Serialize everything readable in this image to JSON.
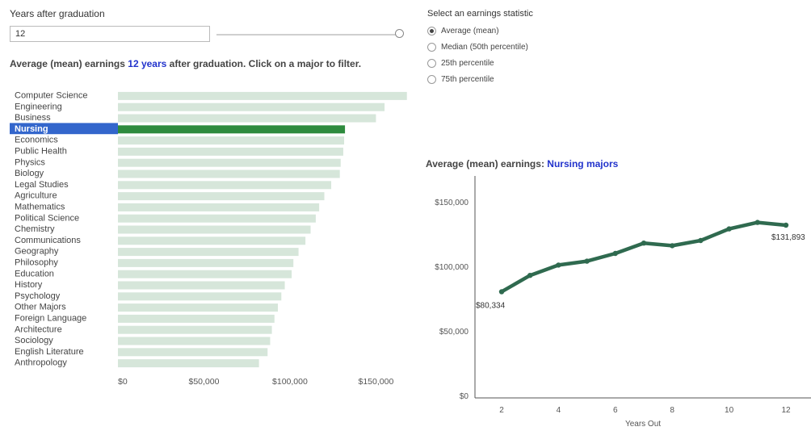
{
  "controls": {
    "years_label": "Years after graduation",
    "years_value": "12",
    "slider_fraction": 1.0,
    "stat_label": "Select an earnings statistic",
    "stat_options": [
      "Average (mean)",
      "Median (50th percentile)",
      "25th percentile",
      "75th percentile"
    ],
    "stat_selected_index": 0
  },
  "bar_title": {
    "prefix": "Average (mean) earnings ",
    "years": "12 years",
    "suffix": " after graduation. Click on a major to filter."
  },
  "line_title": {
    "prefix": "Average (mean) earnings: ",
    "major": "Nursing majors"
  },
  "colors": {
    "bar_default": "#d6e6da",
    "bar_selected": "#2e8b3e",
    "label_selected_bg": "#3366cc",
    "line": "#2f6a4f",
    "highlight_text": "#2233cc"
  },
  "chart_data": [
    {
      "type": "bar",
      "orientation": "horizontal",
      "selected": "Nursing",
      "categories": [
        "Computer Science",
        "Engineering",
        "Business",
        "Nursing",
        "Economics",
        "Public Health",
        "Physics",
        "Biology",
        "Legal Studies",
        "Agriculture",
        "Mathematics",
        "Political Science",
        "Chemistry",
        "Communications",
        "Geography",
        "Philosophy",
        "Education",
        "History",
        "Psychology",
        "Other Majors",
        "Foreign Language",
        "Architecture",
        "Sociology",
        "English Literature",
        "Anthropology"
      ],
      "values": [
        168000,
        155000,
        150000,
        132000,
        131500,
        131000,
        129500,
        129000,
        124000,
        120000,
        117000,
        115000,
        112000,
        109000,
        105000,
        102000,
        101000,
        97000,
        95000,
        93000,
        91000,
        89500,
        88500,
        87000,
        82000
      ],
      "xticks": [
        "$0",
        "$50,000",
        "$100,000",
        "$150,000"
      ],
      "xlim": [
        0,
        170000
      ]
    },
    {
      "type": "line",
      "series": [
        {
          "x": [
            2,
            3,
            4,
            5,
            6,
            7,
            8,
            9,
            10,
            11,
            12
          ],
          "values": [
            80334,
            93000,
            101000,
            104000,
            110000,
            118000,
            116000,
            120000,
            129000,
            134000,
            131893
          ]
        }
      ],
      "annotations": [
        {
          "x": 2,
          "y": 80334,
          "text": "$80,334"
        },
        {
          "x": 12,
          "y": 131893,
          "text": "$131,893"
        }
      ],
      "xlabel": "Years Out",
      "xticks": [
        "2",
        "4",
        "6",
        "8",
        "10",
        "12"
      ],
      "yticks": [
        "$0",
        "$50,000",
        "$100,000",
        "$150,000"
      ],
      "ylim": [
        0,
        150000
      ]
    }
  ]
}
